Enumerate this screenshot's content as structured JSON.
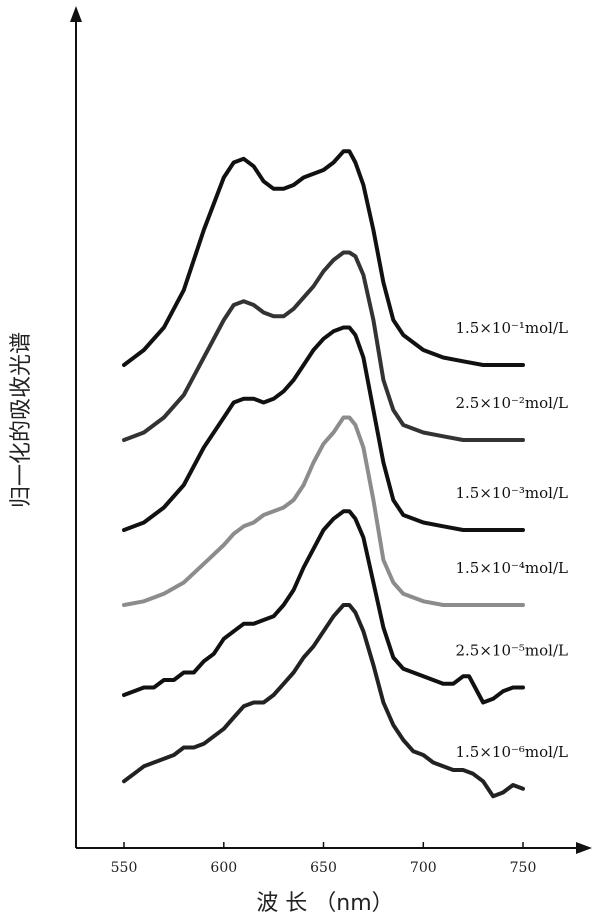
{
  "chart_data": {
    "type": "line",
    "xlabel": "波 长 （nm）",
    "ylabel": "归一化的吸收光谱",
    "xlim": [
      550,
      750
    ],
    "xticks": [
      550,
      600,
      650,
      700,
      750
    ],
    "x_tick_labels": [
      "550",
      "600",
      "650",
      "700",
      "750"
    ],
    "y_ticks_shown": false,
    "grid": false,
    "series": [
      {
        "name": "1.5×10⁻¹mol/L",
        "color": "#111111",
        "points": [
          [
            550,
            0.62
          ],
          [
            560,
            0.64
          ],
          [
            570,
            0.67
          ],
          [
            580,
            0.72
          ],
          [
            590,
            0.8
          ],
          [
            600,
            0.87
          ],
          [
            605,
            0.89
          ],
          [
            610,
            0.895
          ],
          [
            615,
            0.885
          ],
          [
            620,
            0.865
          ],
          [
            625,
            0.855
          ],
          [
            630,
            0.855
          ],
          [
            635,
            0.86
          ],
          [
            640,
            0.87
          ],
          [
            645,
            0.875
          ],
          [
            650,
            0.88
          ],
          [
            655,
            0.89
          ],
          [
            660,
            0.905
          ],
          [
            663,
            0.905
          ],
          [
            666,
            0.89
          ],
          [
            670,
            0.86
          ],
          [
            675,
            0.8
          ],
          [
            680,
            0.73
          ],
          [
            685,
            0.68
          ],
          [
            690,
            0.66
          ],
          [
            695,
            0.65
          ],
          [
            700,
            0.64
          ],
          [
            710,
            0.63
          ],
          [
            720,
            0.625
          ],
          [
            730,
            0.62
          ],
          [
            740,
            0.62
          ],
          [
            750,
            0.62
          ]
        ]
      },
      {
        "name": "2.5×10⁻²mol/L",
        "color": "#333333",
        "points": [
          [
            550,
            0.52
          ],
          [
            560,
            0.53
          ],
          [
            570,
            0.55
          ],
          [
            580,
            0.58
          ],
          [
            590,
            0.63
          ],
          [
            600,
            0.68
          ],
          [
            605,
            0.7
          ],
          [
            610,
            0.705
          ],
          [
            615,
            0.7
          ],
          [
            620,
            0.69
          ],
          [
            625,
            0.685
          ],
          [
            630,
            0.685
          ],
          [
            635,
            0.695
          ],
          [
            640,
            0.71
          ],
          [
            645,
            0.725
          ],
          [
            650,
            0.745
          ],
          [
            655,
            0.76
          ],
          [
            660,
            0.77
          ],
          [
            663,
            0.77
          ],
          [
            666,
            0.765
          ],
          [
            670,
            0.74
          ],
          [
            675,
            0.68
          ],
          [
            680,
            0.6
          ],
          [
            685,
            0.56
          ],
          [
            690,
            0.54
          ],
          [
            700,
            0.53
          ],
          [
            710,
            0.525
          ],
          [
            720,
            0.52
          ],
          [
            730,
            0.52
          ],
          [
            740,
            0.52
          ],
          [
            750,
            0.52
          ]
        ]
      },
      {
        "name": "1.5×10⁻³mol/L",
        "color": "#111111",
        "points": [
          [
            550,
            0.4
          ],
          [
            560,
            0.41
          ],
          [
            570,
            0.43
          ],
          [
            580,
            0.46
          ],
          [
            590,
            0.51
          ],
          [
            600,
            0.55
          ],
          [
            605,
            0.57
          ],
          [
            610,
            0.575
          ],
          [
            615,
            0.575
          ],
          [
            620,
            0.57
          ],
          [
            625,
            0.575
          ],
          [
            630,
            0.585
          ],
          [
            635,
            0.6
          ],
          [
            640,
            0.62
          ],
          [
            645,
            0.64
          ],
          [
            650,
            0.655
          ],
          [
            655,
            0.665
          ],
          [
            660,
            0.67
          ],
          [
            663,
            0.67
          ],
          [
            666,
            0.66
          ],
          [
            670,
            0.63
          ],
          [
            675,
            0.56
          ],
          [
            680,
            0.49
          ],
          [
            685,
            0.44
          ],
          [
            690,
            0.42
          ],
          [
            700,
            0.41
          ],
          [
            710,
            0.405
          ],
          [
            720,
            0.4
          ],
          [
            730,
            0.4
          ],
          [
            740,
            0.4
          ],
          [
            750,
            0.4
          ]
        ]
      },
      {
        "name": "1.5×10⁻⁴mol/L",
        "color": "#8c8c8c",
        "points": [
          [
            550,
            0.3
          ],
          [
            560,
            0.305
          ],
          [
            570,
            0.315
          ],
          [
            580,
            0.33
          ],
          [
            590,
            0.355
          ],
          [
            600,
            0.38
          ],
          [
            605,
            0.395
          ],
          [
            610,
            0.405
          ],
          [
            615,
            0.41
          ],
          [
            620,
            0.42
          ],
          [
            625,
            0.425
          ],
          [
            630,
            0.43
          ],
          [
            635,
            0.44
          ],
          [
            640,
            0.46
          ],
          [
            645,
            0.49
          ],
          [
            650,
            0.515
          ],
          [
            655,
            0.53
          ],
          [
            660,
            0.55
          ],
          [
            663,
            0.55
          ],
          [
            666,
            0.54
          ],
          [
            670,
            0.51
          ],
          [
            675,
            0.44
          ],
          [
            680,
            0.36
          ],
          [
            685,
            0.33
          ],
          [
            690,
            0.315
          ],
          [
            700,
            0.305
          ],
          [
            710,
            0.3
          ],
          [
            720,
            0.3
          ],
          [
            730,
            0.3
          ],
          [
            740,
            0.3
          ],
          [
            750,
            0.3
          ]
        ]
      },
      {
        "name": "2.5×10⁻⁵mol/L",
        "color": "#111111",
        "points": [
          [
            550,
            0.18
          ],
          [
            555,
            0.185
          ],
          [
            560,
            0.19
          ],
          [
            565,
            0.19
          ],
          [
            570,
            0.2
          ],
          [
            575,
            0.2
          ],
          [
            580,
            0.21
          ],
          [
            585,
            0.21
          ],
          [
            590,
            0.225
          ],
          [
            595,
            0.235
          ],
          [
            600,
            0.255
          ],
          [
            605,
            0.265
          ],
          [
            610,
            0.275
          ],
          [
            615,
            0.275
          ],
          [
            620,
            0.28
          ],
          [
            625,
            0.285
          ],
          [
            630,
            0.3
          ],
          [
            635,
            0.32
          ],
          [
            640,
            0.35
          ],
          [
            645,
            0.375
          ],
          [
            650,
            0.4
          ],
          [
            655,
            0.415
          ],
          [
            660,
            0.425
          ],
          [
            663,
            0.425
          ],
          [
            666,
            0.415
          ],
          [
            670,
            0.39
          ],
          [
            675,
            0.33
          ],
          [
            680,
            0.27
          ],
          [
            685,
            0.23
          ],
          [
            690,
            0.215
          ],
          [
            695,
            0.21
          ],
          [
            700,
            0.205
          ],
          [
            705,
            0.2
          ],
          [
            710,
            0.195
          ],
          [
            715,
            0.195
          ],
          [
            720,
            0.205
          ],
          [
            723,
            0.205
          ],
          [
            726,
            0.19
          ],
          [
            730,
            0.17
          ],
          [
            735,
            0.175
          ],
          [
            740,
            0.185
          ],
          [
            745,
            0.19
          ],
          [
            750,
            0.19
          ]
        ]
      },
      {
        "name": "1.5×10⁻⁶mol/L",
        "color": "#222222",
        "points": [
          [
            550,
            0.065
          ],
          [
            555,
            0.075
          ],
          [
            560,
            0.085
          ],
          [
            565,
            0.09
          ],
          [
            570,
            0.095
          ],
          [
            575,
            0.1
          ],
          [
            580,
            0.11
          ],
          [
            585,
            0.11
          ],
          [
            590,
            0.115
          ],
          [
            595,
            0.125
          ],
          [
            600,
            0.135
          ],
          [
            605,
            0.15
          ],
          [
            610,
            0.165
          ],
          [
            615,
            0.17
          ],
          [
            620,
            0.17
          ],
          [
            625,
            0.18
          ],
          [
            630,
            0.195
          ],
          [
            635,
            0.21
          ],
          [
            640,
            0.23
          ],
          [
            645,
            0.245
          ],
          [
            650,
            0.265
          ],
          [
            655,
            0.285
          ],
          [
            660,
            0.3
          ],
          [
            663,
            0.3
          ],
          [
            666,
            0.29
          ],
          [
            670,
            0.265
          ],
          [
            675,
            0.22
          ],
          [
            680,
            0.17
          ],
          [
            685,
            0.14
          ],
          [
            690,
            0.12
          ],
          [
            695,
            0.105
          ],
          [
            700,
            0.1
          ],
          [
            705,
            0.09
          ],
          [
            710,
            0.085
          ],
          [
            715,
            0.08
          ],
          [
            720,
            0.08
          ],
          [
            725,
            0.075
          ],
          [
            730,
            0.065
          ],
          [
            735,
            0.045
          ],
          [
            740,
            0.05
          ],
          [
            745,
            0.06
          ],
          [
            750,
            0.055
          ]
        ]
      }
    ]
  }
}
